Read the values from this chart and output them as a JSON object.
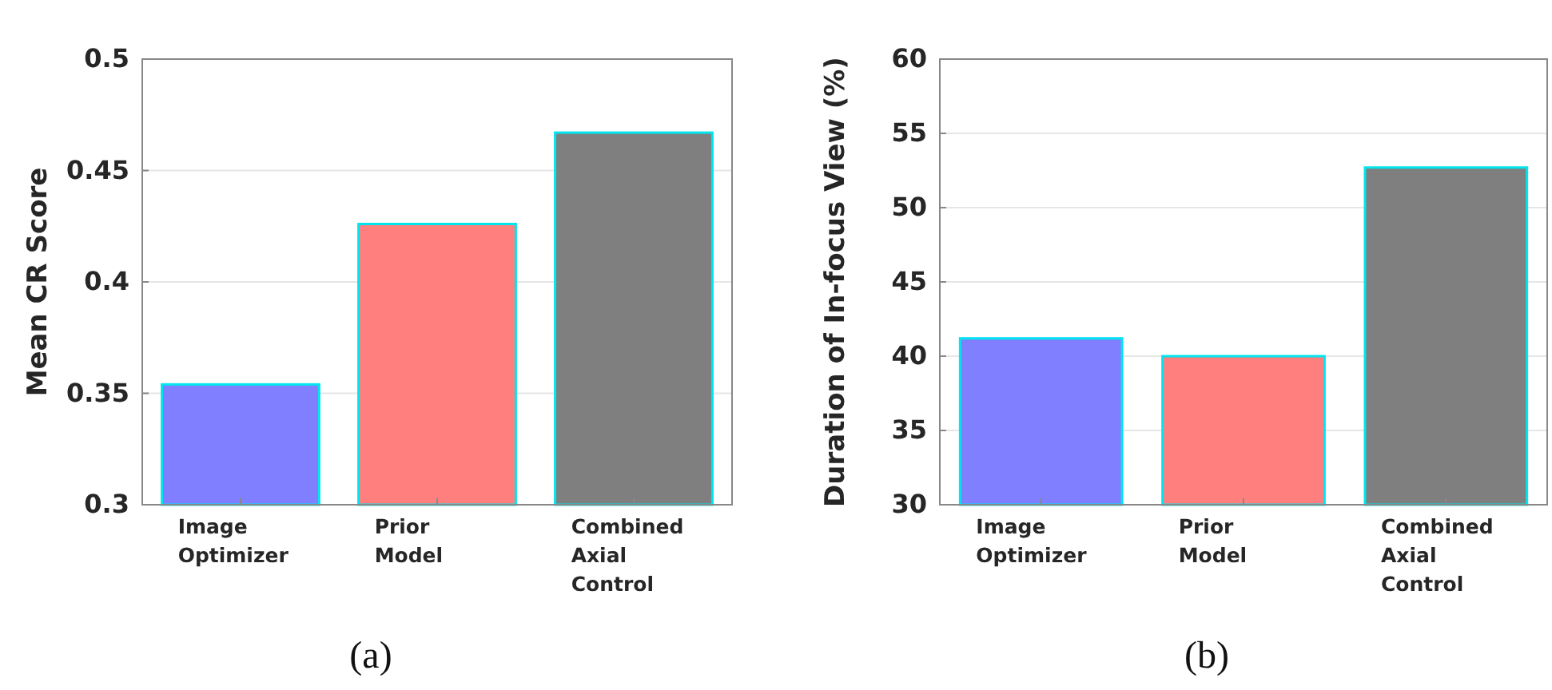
{
  "chart_data": [
    {
      "type": "bar",
      "categories": [
        "Image Optimizer",
        "Prior Model",
        "Combined Axial Control"
      ],
      "values": [
        0.354,
        0.426,
        0.467
      ],
      "colors": [
        "#7f7fff",
        "#ff7f7f",
        "#7f7f7f"
      ],
      "ylabel": "Mean CR Score",
      "ylim": [
        0.3,
        0.5
      ],
      "yticks": [
        0.3,
        0.35,
        0.4,
        0.45,
        0.5
      ],
      "grid": "y",
      "annotations": [
        "(a)"
      ]
    },
    {
      "type": "bar",
      "categories": [
        "Image Optimizer",
        "Prior Model",
        "Combined Axial Control"
      ],
      "values": [
        41.2,
        40.0,
        52.7
      ],
      "colors": [
        "#7f7fff",
        "#ff7f7f",
        "#7f7f7f"
      ],
      "ylabel": "Duration of In-focus View (%)",
      "ylim": [
        30,
        60
      ],
      "yticks": [
        30,
        35,
        40,
        45,
        50,
        55,
        60
      ],
      "grid": "y",
      "annotations": [
        "(b)"
      ]
    }
  ]
}
